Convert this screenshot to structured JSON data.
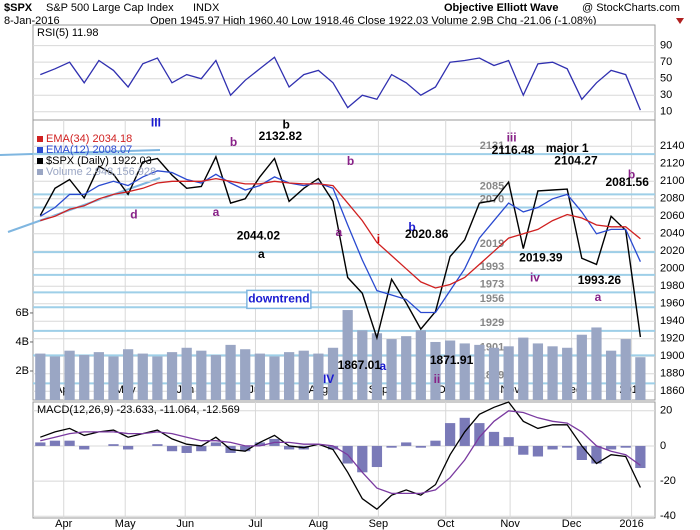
{
  "header": {
    "symbol": "$SPX",
    "name": "S&P 500 Large Cap Index",
    "exchange": "INDX",
    "date": "8-Jan-2016",
    "quote": "Open 1945.97  High 1960.40  Low 1918.46  Close 1922.03  Volume 2.9B  Chg -21.06 (-1.08%)",
    "provider": "Objective Elliott Wave",
    "credit": "@ StockCharts.com"
  },
  "chart_data": [
    {
      "type": "line",
      "title": "RSI(5) 11.98",
      "x": [
        0,
        1,
        2,
        3,
        4,
        5,
        6,
        7,
        8,
        9,
        10,
        11,
        12,
        13,
        14,
        15,
        16,
        17,
        18,
        19,
        20,
        21,
        22,
        23,
        24,
        25,
        26,
        27,
        28,
        29,
        30,
        31,
        32,
        33,
        34,
        35,
        36,
        37,
        38,
        39,
        40,
        41
      ],
      "xlim": [
        -0.5,
        42
      ],
      "ylim": [
        0,
        115
      ],
      "yticks": [
        10,
        30,
        50,
        70,
        90
      ],
      "series": [
        {
          "color": "#3030b0",
          "values": [
            55,
            62,
            70,
            45,
            72,
            60,
            40,
            68,
            75,
            45,
            55,
            50,
            72,
            30,
            48,
            62,
            76,
            40,
            55,
            60,
            45,
            15,
            30,
            25,
            55,
            45,
            30,
            40,
            70,
            72,
            75,
            66,
            72,
            30,
            68,
            70,
            62,
            25,
            45,
            60,
            55,
            11.98
          ]
        }
      ]
    },
    {
      "type": "line",
      "x": [
        0,
        1,
        2,
        3,
        4,
        5,
        6,
        7,
        8,
        9,
        10,
        11,
        12,
        13,
        14,
        15,
        16,
        17,
        18,
        19,
        20,
        21,
        22,
        23,
        24,
        25,
        26,
        27,
        28,
        29,
        30,
        31,
        32,
        33,
        34,
        35,
        36,
        37,
        38,
        39,
        40,
        41
      ],
      "xlim": [
        -0.5,
        42
      ],
      "ylim": [
        1850,
        2170
      ],
      "yticks": [
        1860,
        1880,
        1900,
        1920,
        1940,
        1960,
        1980,
        2000,
        2020,
        2040,
        2060,
        2080,
        2100,
        2120,
        2140
      ],
      "y2lim": [
        0,
        19.3
      ],
      "y2ticks": [
        {
          "value": 2,
          "label": "2B"
        },
        {
          "value": 4,
          "label": "4B"
        },
        {
          "value": 6,
          "label": "6B"
        }
      ],
      "xticks": [
        {
          "value": 1.6,
          "label": "Apr"
        },
        {
          "value": 5.8,
          "label": "May"
        },
        {
          "value": 9.9,
          "label": "Jun"
        },
        {
          "value": 14.7,
          "label": "Jul"
        },
        {
          "value": 19.0,
          "label": "Aug"
        },
        {
          "value": 23.1,
          "label": "Sep"
        },
        {
          "value": 27.7,
          "label": "Oct"
        },
        {
          "value": 32.1,
          "label": "Nov"
        },
        {
          "value": 36.3,
          "label": "Dec"
        },
        {
          "value": 40.4,
          "label": "2016"
        }
      ],
      "series": [
        {
          "name": "Volume 2,948,156,928",
          "type": "bar",
          "axis": "y2",
          "color": "#9aa6c4",
          "values": [
            3.2,
            3.0,
            3.4,
            3.1,
            3.3,
            3.0,
            3.5,
            3.2,
            3.0,
            3.3,
            3.6,
            3.4,
            3.1,
            3.8,
            3.5,
            3.2,
            3.0,
            3.3,
            3.4,
            3.2,
            3.6,
            6.2,
            4.8,
            4.6,
            4.2,
            4.4,
            4.8,
            4.0,
            4.1,
            3.9,
            3.8,
            3.6,
            3.7,
            4.3,
            3.9,
            3.7,
            3.6,
            4.5,
            5.0,
            3.4,
            4.2,
            2.95
          ]
        },
        {
          "name": "$SPX (Daily) 1922.03",
          "color": "#000000",
          "values": [
            2061,
            2092,
            2102,
            2081,
            2117,
            2108,
            2085,
            2122,
            2126,
            2107,
            2092,
            2094,
            2128,
            2075,
            2080,
            2105,
            2126,
            2077,
            2092,
            2103,
            2077,
            1990,
            1972,
            1921,
            1988,
            1961,
            1931,
            1951,
            2014,
            2033,
            2075,
            2078,
            2099,
            2023,
            2089,
            2090,
            2091,
            2012,
            2005,
            2060,
            2044,
            1922.03
          ]
        },
        {
          "name": "EMA(12) 2008.07",
          "color": "#2a4ad0",
          "values": [
            2060,
            2070,
            2085,
            2085,
            2095,
            2100,
            2095,
            2105,
            2112,
            2110,
            2102,
            2098,
            2108,
            2098,
            2090,
            2095,
            2105,
            2098,
            2095,
            2098,
            2092,
            2050,
            2010,
            1975,
            1970,
            1965,
            1950,
            1950,
            1975,
            2000,
            2035,
            2055,
            2075,
            2065,
            2070,
            2080,
            2085,
            2065,
            2040,
            2045,
            2045,
            2008.07
          ]
        },
        {
          "name": "EMA(34) 2034.18",
          "color": "#d02020",
          "values": [
            2055,
            2060,
            2068,
            2072,
            2080,
            2085,
            2088,
            2092,
            2098,
            2100,
            2100,
            2100,
            2103,
            2100,
            2097,
            2097,
            2100,
            2098,
            2097,
            2097,
            2095,
            2075,
            2055,
            2030,
            2015,
            2000,
            1985,
            1978,
            1982,
            1990,
            2005,
            2020,
            2035,
            2040,
            2045,
            2055,
            2062,
            2058,
            2050,
            2048,
            2048,
            2034.18
          ]
        }
      ],
      "levels": [
        2131,
        2085,
        2070,
        2019,
        1993,
        1973,
        1956,
        1929,
        1901,
        1869
      ],
      "annotations": [
        {
          "text": "III",
          "x": 7.9,
          "y": 2166,
          "color": "#1a1ad0"
        },
        {
          "text": "b",
          "x": 13.2,
          "y": 2144,
          "color": "#882288"
        },
        {
          "text": "b",
          "x": 16.8,
          "y": 2164,
          "color": "#000000"
        },
        {
          "text": "2132.82",
          "x": 16.4,
          "y": 2151,
          "color": "#000000"
        },
        {
          "text": "a",
          "x": 12.0,
          "y": 2064,
          "color": "#882288"
        },
        {
          "text": "d",
          "x": 6.4,
          "y": 2061,
          "color": "#882288"
        },
        {
          "text": "2044.02",
          "x": 14.9,
          "y": 2037,
          "color": "#000000"
        },
        {
          "text": "a",
          "x": 15.1,
          "y": 2016,
          "color": "#000000"
        },
        {
          "text": "b",
          "x": 21.2,
          "y": 2122,
          "color": "#882288"
        },
        {
          "text": "a",
          "x": 20.4,
          "y": 2041,
          "color": "#882288"
        },
        {
          "text": "i",
          "x": 23.1,
          "y": 2033,
          "color": "#cc0000"
        },
        {
          "text": "b",
          "x": 25.4,
          "y": 2047,
          "color": "#1a1ad0"
        },
        {
          "text": "2020.86",
          "x": 26.4,
          "y": 2039,
          "color": "#000000"
        },
        {
          "text": "a",
          "x": 23.4,
          "y": 1888,
          "color": "#1a1ad0"
        },
        {
          "text": "IV",
          "x": 19.7,
          "y": 1873,
          "color": "#1a1ad0"
        },
        {
          "text": "1867.01",
          "x": 21.8,
          "y": 1889,
          "color": "#000000"
        },
        {
          "text": "1871.91",
          "x": 28.1,
          "y": 1895,
          "color": "#000000"
        },
        {
          "text": "ii",
          "x": 27.1,
          "y": 1873,
          "color": "#882288"
        },
        {
          "text": "iii",
          "x": 32.2,
          "y": 2149,
          "color": "#882288"
        },
        {
          "text": "2116.48",
          "x": 32.3,
          "y": 2135,
          "color": "#000000"
        },
        {
          "text": "major 1",
          "x": 36.0,
          "y": 2137,
          "color": "#000000"
        },
        {
          "text": "2104.27",
          "x": 36.6,
          "y": 2123,
          "color": "#000000"
        },
        {
          "text": "b",
          "x": 40.4,
          "y": 2107,
          "color": "#882288"
        },
        {
          "text": "2081.56",
          "x": 40.1,
          "y": 2098,
          "color": "#000000"
        },
        {
          "text": "iv",
          "x": 33.8,
          "y": 1989,
          "color": "#882288"
        },
        {
          "text": "2019.39",
          "x": 34.2,
          "y": 2012,
          "color": "#000000"
        },
        {
          "text": "1993.26",
          "x": 38.2,
          "y": 1986,
          "color": "#000000"
        },
        {
          "text": "a",
          "x": 38.1,
          "y": 1967,
          "color": "#882288"
        },
        {
          "text": "downtrend",
          "x": 16.3,
          "y": 1965,
          "color": "#1a1ad0"
        }
      ]
    },
    {
      "type": "line",
      "title": "MACD(12,26,9) -23.633, -11.064, -12.569",
      "x": [
        0,
        1,
        2,
        3,
        4,
        5,
        6,
        7,
        8,
        9,
        10,
        11,
        12,
        13,
        14,
        15,
        16,
        17,
        18,
        19,
        20,
        21,
        22,
        23,
        24,
        25,
        26,
        27,
        28,
        29,
        30,
        31,
        32,
        33,
        34,
        35,
        36,
        37,
        38,
        39,
        40,
        41
      ],
      "xlim": [
        -0.5,
        42
      ],
      "ylim": [
        -41,
        25
      ],
      "yticks": [
        -40,
        -20,
        0,
        20
      ],
      "xticks": [
        {
          "value": 1.6,
          "label": "Apr"
        },
        {
          "value": 5.8,
          "label": "May"
        },
        {
          "value": 9.9,
          "label": "Jun"
        },
        {
          "value": 14.7,
          "label": "Jul"
        },
        {
          "value": 19.0,
          "label": "Aug"
        },
        {
          "value": 23.1,
          "label": "Sep"
        },
        {
          "value": 27.7,
          "label": "Oct"
        },
        {
          "value": 32.1,
          "label": "Nov"
        },
        {
          "value": 36.3,
          "label": "Dec"
        },
        {
          "value": 40.4,
          "label": "2016"
        }
      ],
      "series": [
        {
          "type": "bar",
          "color": "#7a7ab8",
          "values": [
            2,
            3,
            3,
            -2,
            0,
            1,
            -2,
            0,
            1,
            -3,
            -4,
            -3,
            2,
            -4,
            -3,
            2,
            4,
            -2,
            -2,
            0,
            -2,
            -10,
            -15,
            -12,
            -1,
            2,
            -1,
            3,
            13,
            16,
            13,
            8,
            5,
            -5,
            -6,
            -2,
            -1,
            -8,
            -10,
            -2,
            -1,
            -12.569
          ]
        },
        {
          "color": "#000000",
          "values": [
            5,
            8,
            10,
            6,
            8,
            9,
            5,
            7,
            9,
            4,
            1,
            0,
            5,
            -2,
            -3,
            2,
            6,
            0,
            -1,
            1,
            -2,
            -15,
            -30,
            -36,
            -28,
            -25,
            -28,
            -22,
            -5,
            8,
            18,
            22,
            25,
            14,
            10,
            12,
            12,
            0,
            -10,
            -5,
            -6,
            -23.633
          ]
        },
        {
          "color": "#7a3aa0",
          "values": [
            3,
            5,
            7,
            8,
            8,
            8,
            7,
            7,
            8,
            7,
            5,
            3,
            3,
            2,
            0,
            0,
            2,
            2,
            1,
            1,
            0,
            -5,
            -15,
            -24,
            -27,
            -27,
            -27,
            -25,
            -18,
            -8,
            5,
            14,
            20,
            19,
            16,
            14,
            13,
            8,
            0,
            -3,
            -5,
            -11.064
          ]
        }
      ]
    }
  ]
}
